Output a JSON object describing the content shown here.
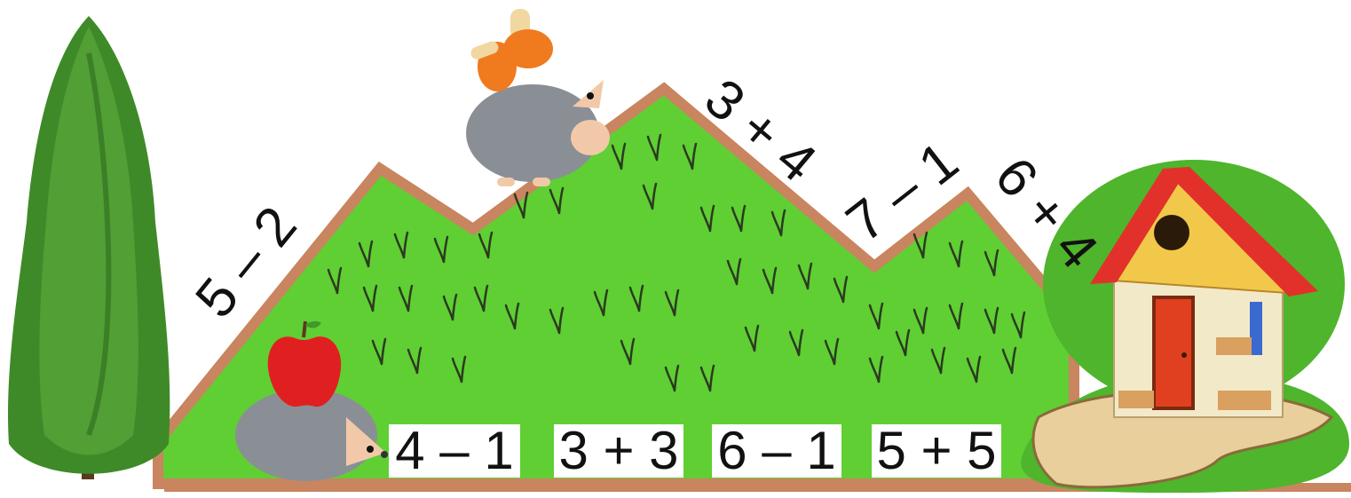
{
  "slope_expressions": {
    "left_slope": "5 – 2",
    "middle_slope": "3 + 4",
    "valley_slope": "7 – 1",
    "right_slope": "6 + 4"
  },
  "bottom_expressions": [
    "4 – 1",
    "3 + 3",
    "6 – 1",
    "5 + 5"
  ],
  "colors": {
    "grass": "#5fcf34",
    "hill_border": "#c9855f",
    "tree": "#3f8a28",
    "house_roof": "#e2312a",
    "house_wall": "#f2e9c8",
    "door": "#e0401f",
    "path": "#e8cf9c",
    "apple": "#e02020",
    "mushroom_cap": "#f07a1e",
    "hedgehog": "#8a8f96"
  },
  "icons": [
    "tree-icon",
    "hedgehog-icon",
    "apple-icon",
    "mushroom-icon",
    "house-icon"
  ]
}
